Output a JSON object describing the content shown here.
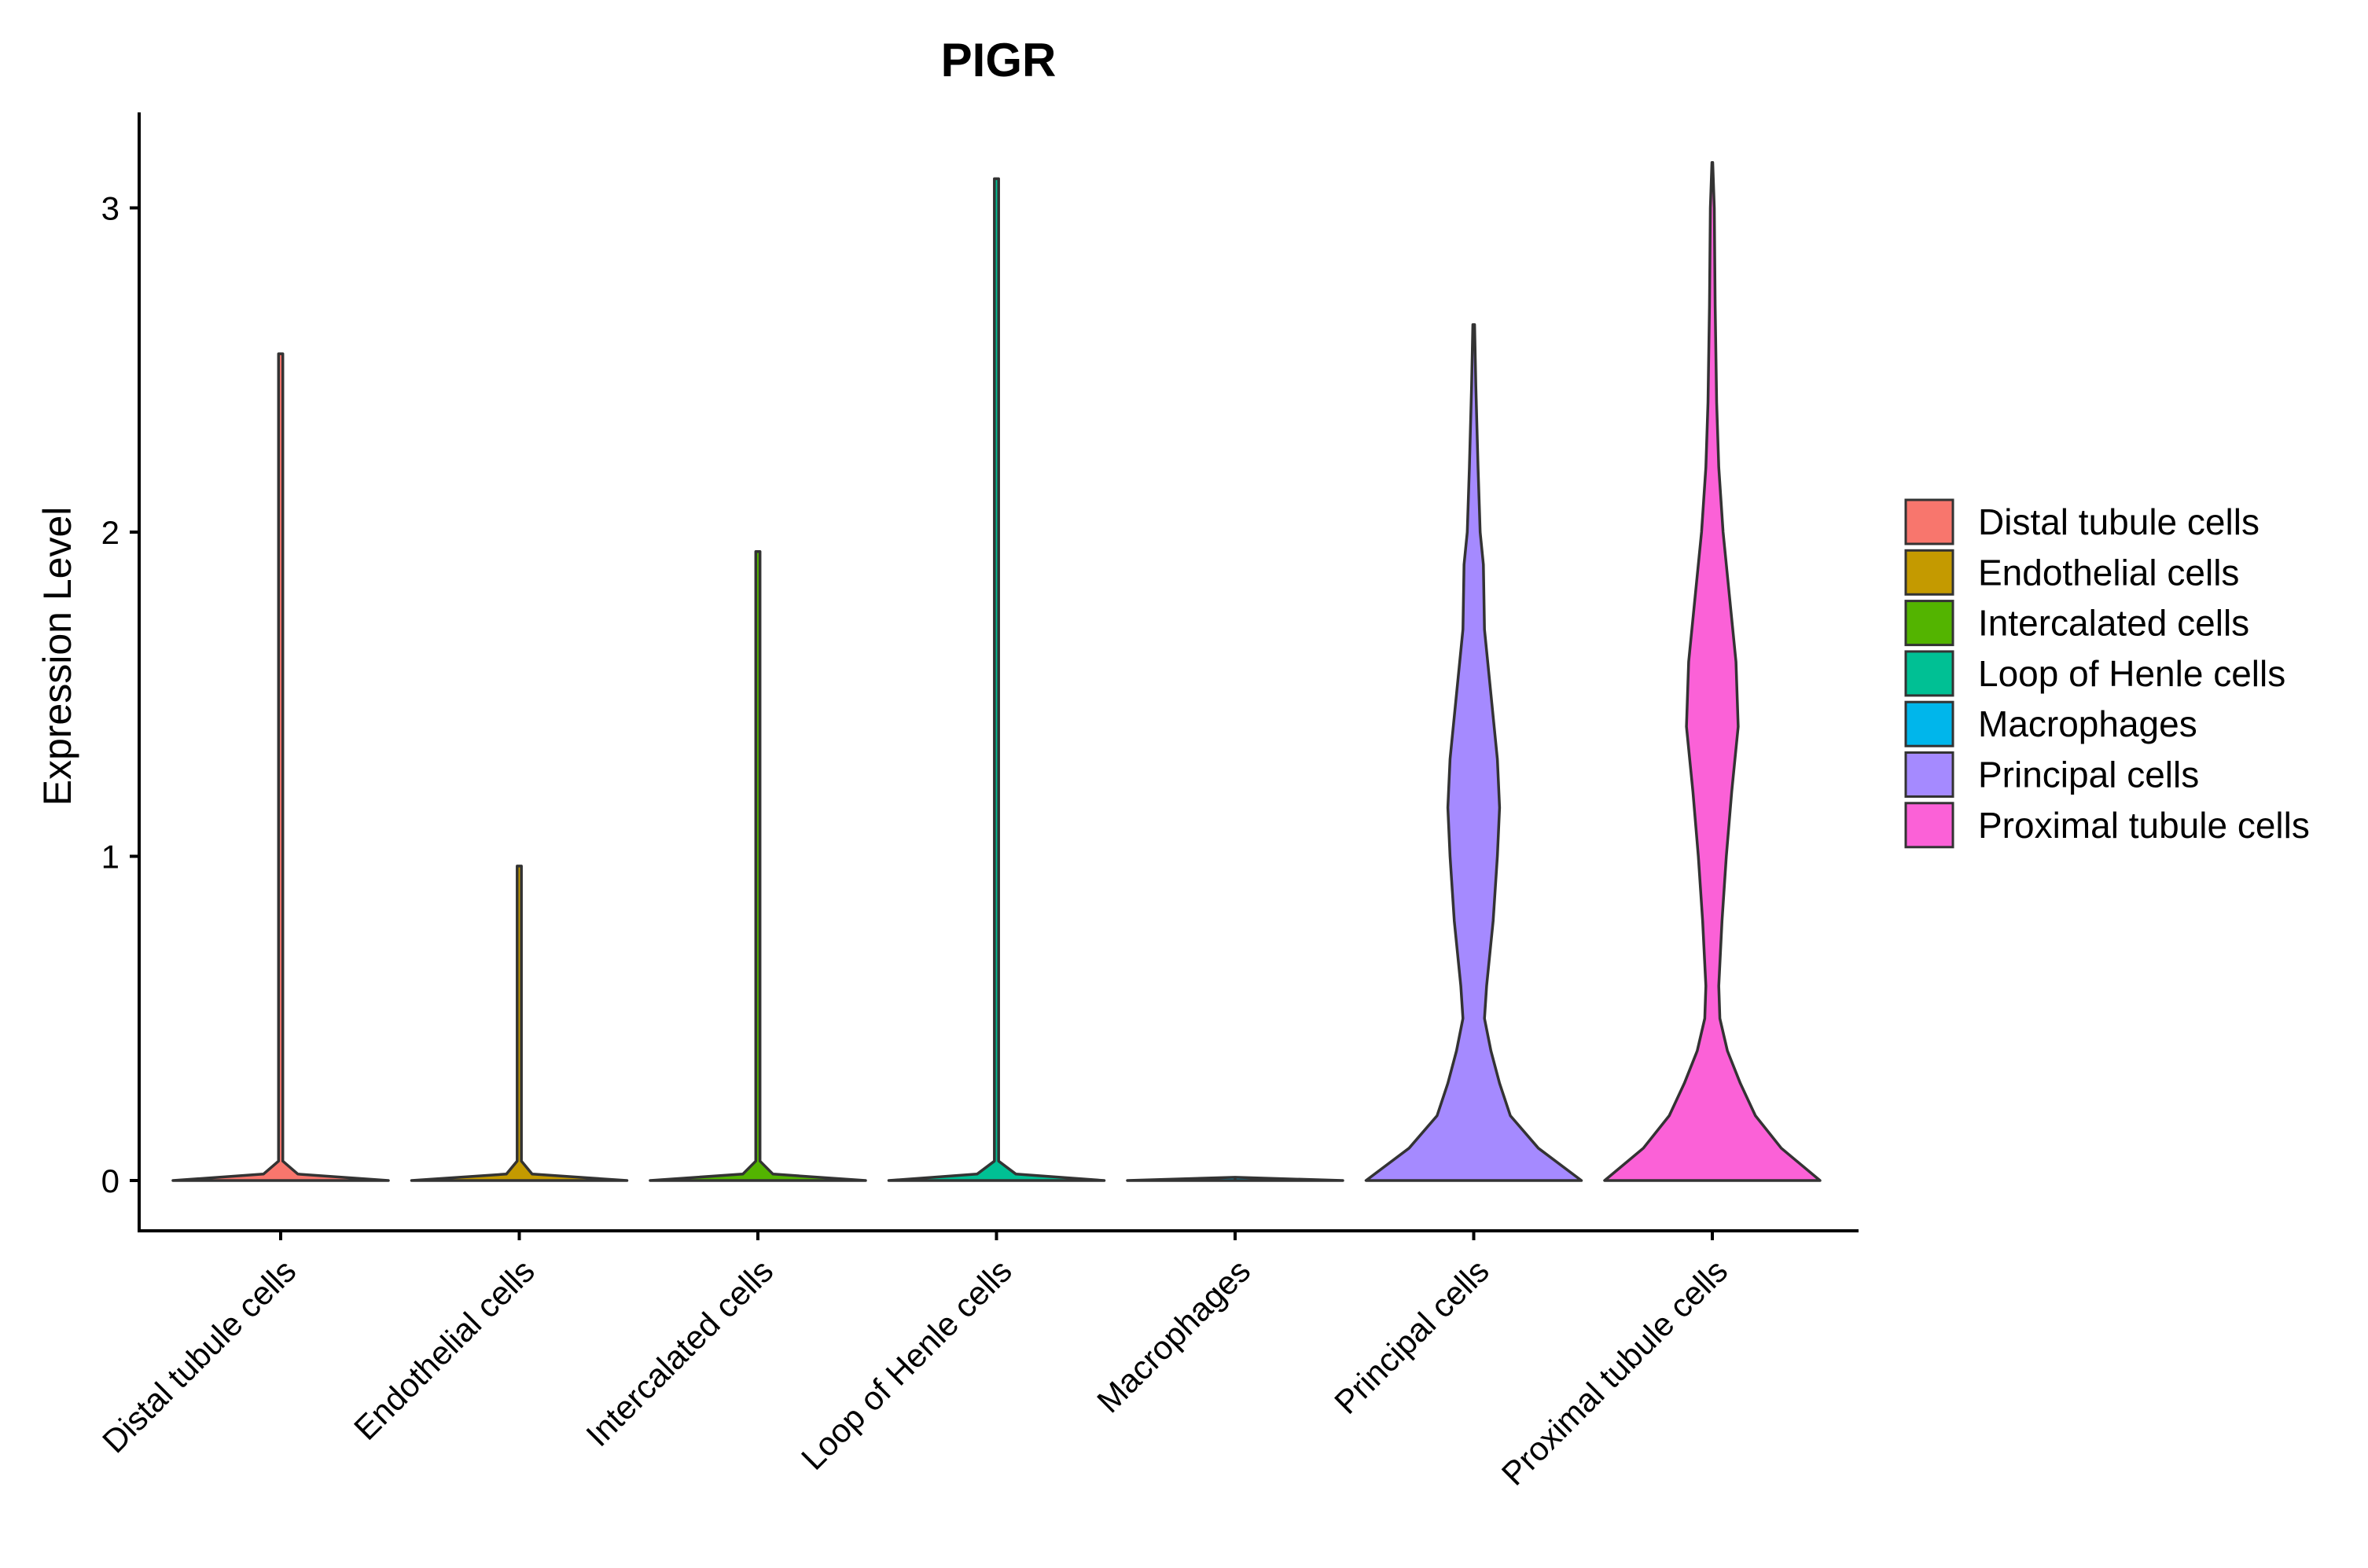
{
  "chart_data": {
    "type": "violin",
    "title": "PIGR",
    "xlabel": "",
    "ylabel": "Expression Level",
    "ylim": [
      -0.15,
      3.3
    ],
    "yticks": [
      0,
      1,
      2,
      3
    ],
    "categories": [
      "Distal tubule cells",
      "Endothelial cells",
      "Intercalated cells",
      "Loop of Henle cells",
      "Macrophages",
      "Principal cells",
      "Proximal tubule cells"
    ],
    "colors": [
      "#F8766D",
      "#C49A00",
      "#53B400",
      "#00C094",
      "#00B6EB",
      "#A58AFF",
      "#FB61D7"
    ],
    "series": [
      {
        "name": "Distal tubule cells",
        "max": 2.55,
        "profile": [
          [
            0,
            0.5
          ],
          [
            0.02,
            0.08
          ],
          [
            0.06,
            0.01
          ],
          [
            0.3,
            0.01
          ],
          [
            2.55,
            0.01
          ]
        ]
      },
      {
        "name": "Endothelial cells",
        "max": 0.97,
        "profile": [
          [
            0,
            0.5
          ],
          [
            0.02,
            0.06
          ],
          [
            0.06,
            0.01
          ],
          [
            0.97,
            0.01
          ]
        ]
      },
      {
        "name": "Intercalated cells",
        "max": 1.94,
        "profile": [
          [
            0,
            0.5
          ],
          [
            0.02,
            0.07
          ],
          [
            0.06,
            0.01
          ],
          [
            1.94,
            0.01
          ]
        ]
      },
      {
        "name": "Loop of Henle cells",
        "max": 3.09,
        "profile": [
          [
            0,
            0.5
          ],
          [
            0.02,
            0.09
          ],
          [
            0.06,
            0.01
          ],
          [
            3.09,
            0.01
          ]
        ]
      },
      {
        "name": "Macrophages",
        "max": 0.0,
        "profile": [
          [
            0,
            0.5
          ],
          [
            0.01,
            0.0
          ]
        ]
      },
      {
        "name": "Principal cells",
        "max": 2.64,
        "profile": [
          [
            0,
            0.5
          ],
          [
            0.1,
            0.3
          ],
          [
            0.2,
            0.17
          ],
          [
            0.3,
            0.12
          ],
          [
            0.4,
            0.08
          ],
          [
            0.5,
            0.05
          ],
          [
            0.6,
            0.06
          ],
          [
            0.8,
            0.09
          ],
          [
            1.0,
            0.11
          ],
          [
            1.15,
            0.12
          ],
          [
            1.3,
            0.11
          ],
          [
            1.5,
            0.08
          ],
          [
            1.7,
            0.05
          ],
          [
            1.9,
            0.045
          ],
          [
            2.0,
            0.03
          ],
          [
            2.2,
            0.02
          ],
          [
            2.45,
            0.01
          ],
          [
            2.64,
            0.004
          ]
        ]
      },
      {
        "name": "Proximal tubule cells",
        "max": 3.14,
        "profile": [
          [
            0,
            0.5
          ],
          [
            0.1,
            0.32
          ],
          [
            0.2,
            0.2
          ],
          [
            0.3,
            0.13
          ],
          [
            0.4,
            0.07
          ],
          [
            0.5,
            0.035
          ],
          [
            0.6,
            0.03
          ],
          [
            0.8,
            0.045
          ],
          [
            1.0,
            0.065
          ],
          [
            1.2,
            0.09
          ],
          [
            1.4,
            0.12
          ],
          [
            1.6,
            0.11
          ],
          [
            1.8,
            0.08
          ],
          [
            2.0,
            0.05
          ],
          [
            2.2,
            0.03
          ],
          [
            2.4,
            0.02
          ],
          [
            2.7,
            0.013
          ],
          [
            3.0,
            0.009
          ],
          [
            3.14,
            0.002
          ]
        ]
      }
    ],
    "legend": {
      "position": "right",
      "entries": [
        "Distal tubule cells",
        "Endothelial cells",
        "Intercalated cells",
        "Loop of Henle cells",
        "Macrophages",
        "Principal cells",
        "Proximal tubule cells"
      ]
    }
  }
}
